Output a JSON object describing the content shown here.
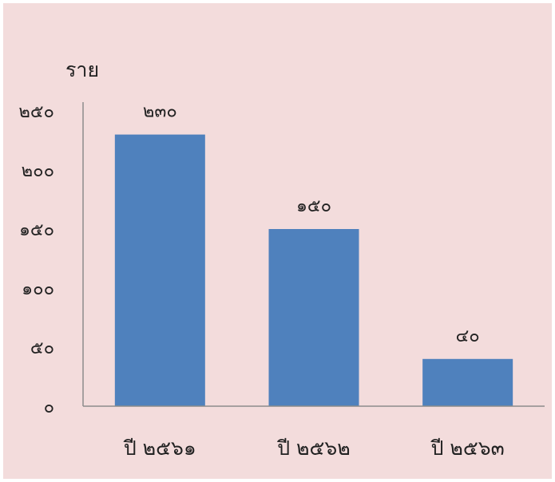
{
  "chart_data": {
    "type": "bar",
    "title": "",
    "xlabel": "",
    "ylabel": "ราย",
    "categories": [
      "ปี ๒๕๖๑",
      "ปี ๒๕๖๒",
      "ปี ๒๕๖๓"
    ],
    "values": [
      230,
      150,
      40
    ],
    "value_labels": [
      "๒๓๐",
      "๑๕๐",
      "๔๐"
    ],
    "yticks": [
      0,
      50,
      100,
      150,
      200,
      250
    ],
    "ytick_labels": [
      "๐",
      "๕๐",
      "๑๐๐",
      "๑๕๐",
      "๒๐๐",
      "๒๕๐"
    ],
    "ylim": [
      0,
      250
    ],
    "grid": false,
    "legend": "none",
    "bar_color": "#4f81bd",
    "background_color": "#f3dcdc"
  }
}
